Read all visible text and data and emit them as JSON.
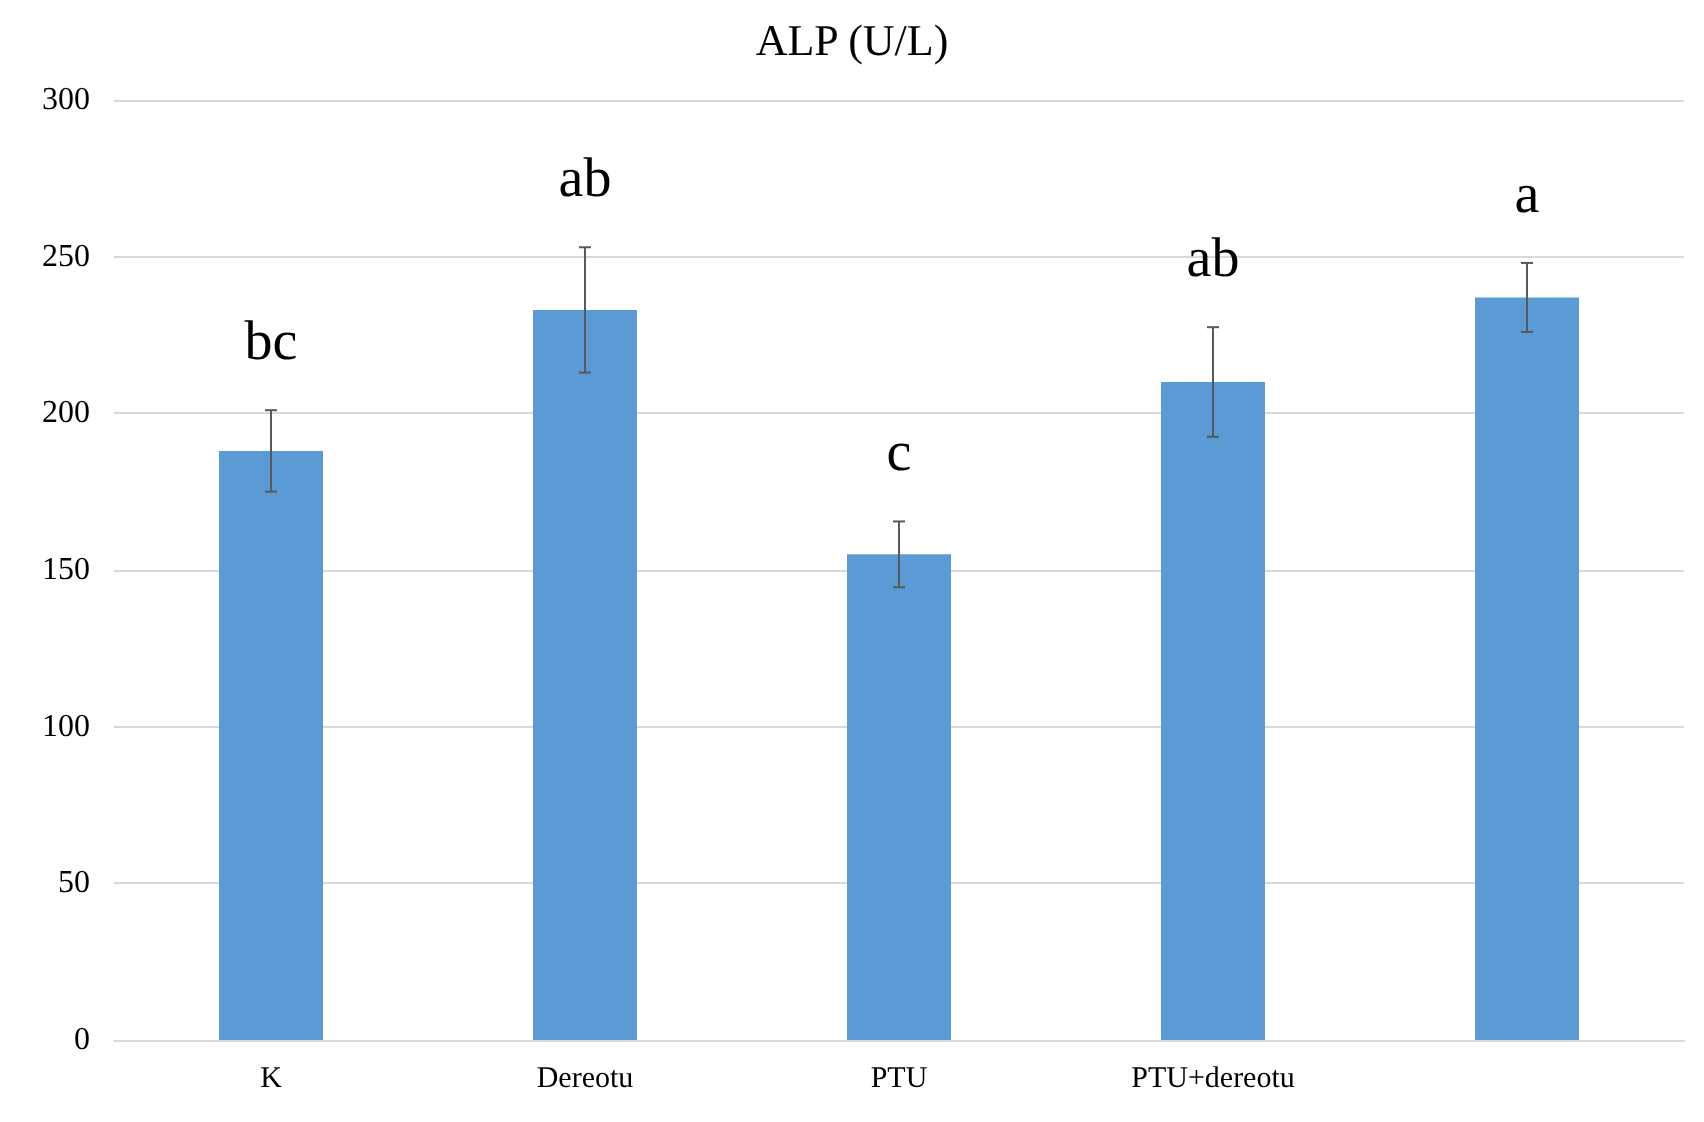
{
  "chart_data": {
    "type": "bar",
    "title": "ALP (U/L)",
    "categories": [
      "K",
      "Dereotu",
      "PTU",
      "PTU+dereotu",
      null
    ],
    "values": [
      188,
      233,
      155,
      210,
      237
    ],
    "errors": [
      13,
      20,
      10.5,
      17.5,
      11
    ],
    "value_labels": [
      "bc",
      "ab",
      "c",
      "ab",
      "a"
    ],
    "color": "#5b9bd5",
    "ylim": [
      0,
      300
    ],
    "yticks": [
      0,
      50,
      100,
      150,
      200,
      250,
      300
    ],
    "grid": "y"
  }
}
